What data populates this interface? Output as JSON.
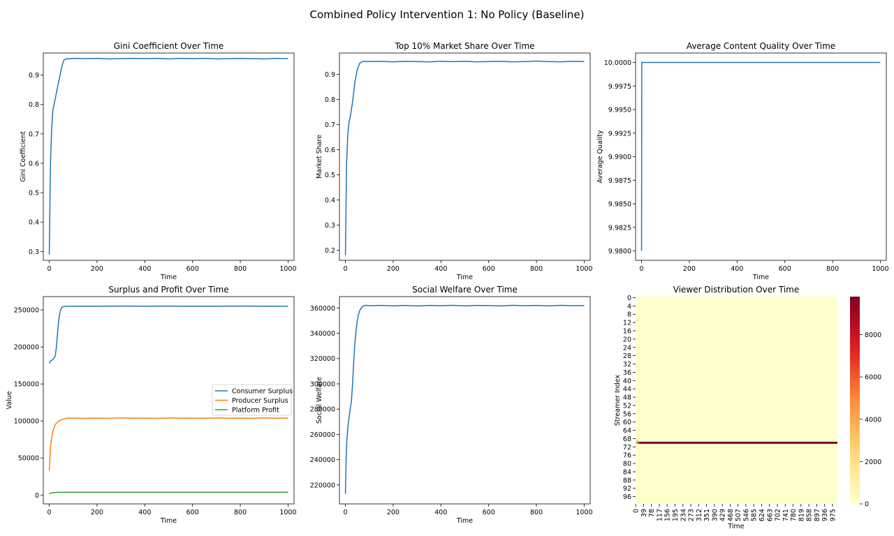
{
  "figure": {
    "suptitle": "Combined Policy Intervention 1: No Policy (Baseline)"
  },
  "chart_data": [
    {
      "type": "line",
      "title": "Gini Coefficient Over Time",
      "xlabel": "Time",
      "ylabel": "Gini Coefficient",
      "xlim": [
        -25,
        1025
      ],
      "ylim": [
        0.27,
        0.975
      ],
      "xticks": [
        0,
        200,
        400,
        600,
        800,
        1000
      ],
      "yticks": [
        0.3,
        0.4,
        0.5,
        0.6,
        0.7,
        0.8,
        0.9
      ],
      "yticklabels": [
        "0.3",
        "0.4",
        "0.5",
        "0.6",
        "0.7",
        "0.8",
        "0.9"
      ],
      "grid": false,
      "series": [
        {
          "color": "#1f77b4",
          "x": [
            0,
            5,
            10,
            15,
            20,
            25,
            30,
            35,
            40,
            50,
            60,
            70,
            80,
            100,
            150,
            200,
            250,
            300,
            350,
            400,
            450,
            500,
            550,
            600,
            650,
            700,
            750,
            800,
            850,
            900,
            950,
            1000
          ],
          "y": [
            0.29,
            0.6,
            0.72,
            0.78,
            0.8,
            0.82,
            0.84,
            0.86,
            0.88,
            0.92,
            0.95,
            0.955,
            0.955,
            0.957,
            0.956,
            0.957,
            0.955,
            0.956,
            0.957,
            0.956,
            0.957,
            0.955,
            0.957,
            0.956,
            0.957,
            0.955,
            0.956,
            0.957,
            0.956,
            0.955,
            0.957,
            0.956
          ]
        }
      ]
    },
    {
      "type": "line",
      "title": "Top 10% Market Share Over Time",
      "xlabel": "Time",
      "ylabel": "Market Share",
      "xlim": [
        -25,
        1025
      ],
      "ylim": [
        0.16,
        0.985
      ],
      "xticks": [
        0,
        200,
        400,
        600,
        800,
        1000
      ],
      "yticks": [
        0.2,
        0.3,
        0.4,
        0.5,
        0.6,
        0.7,
        0.8,
        0.9
      ],
      "yticklabels": [
        "0.2",
        "0.3",
        "0.4",
        "0.5",
        "0.6",
        "0.7",
        "0.8",
        "0.9"
      ],
      "grid": false,
      "series": [
        {
          "color": "#1f77b4",
          "x": [
            0,
            5,
            10,
            15,
            20,
            25,
            30,
            35,
            40,
            50,
            60,
            70,
            80,
            100,
            150,
            200,
            250,
            300,
            350,
            400,
            450,
            500,
            550,
            600,
            650,
            700,
            750,
            800,
            850,
            900,
            950,
            1000
          ],
          "y": [
            0.18,
            0.55,
            0.66,
            0.71,
            0.73,
            0.76,
            0.79,
            0.83,
            0.87,
            0.92,
            0.945,
            0.95,
            0.952,
            0.951,
            0.952,
            0.95,
            0.952,
            0.951,
            0.95,
            0.952,
            0.951,
            0.952,
            0.95,
            0.951,
            0.952,
            0.95,
            0.951,
            0.953,
            0.951,
            0.95,
            0.952,
            0.951
          ]
        }
      ]
    },
    {
      "type": "line",
      "title": "Average Content Quality Over Time",
      "xlabel": "Time",
      "ylabel": "Average Quality",
      "xlim": [
        -25,
        1025
      ],
      "ylim": [
        9.979,
        10.001
      ],
      "xticks": [
        0,
        200,
        400,
        600,
        800,
        1000
      ],
      "yticks": [
        9.98,
        9.9825,
        9.985,
        9.9875,
        9.99,
        9.9925,
        9.995,
        9.9975,
        10.0
      ],
      "yticklabels": [
        "9.9800",
        "9.9825",
        "9.9850",
        "9.9875",
        "9.9900",
        "9.9925",
        "9.9950",
        "9.9975",
        "10.0000"
      ],
      "grid": false,
      "series": [
        {
          "color": "#1f77b4",
          "x": [
            0,
            1,
            1000
          ],
          "y": [
            9.98,
            10.0,
            10.0
          ]
        }
      ]
    },
    {
      "type": "line",
      "title": "Surplus and Profit Over Time",
      "xlabel": "Time",
      "ylabel": "Value",
      "xlim": [
        -25,
        1025
      ],
      "ylim": [
        -12000,
        268000
      ],
      "xticks": [
        0,
        200,
        400,
        600,
        800,
        1000
      ],
      "yticks": [
        0,
        50000,
        100000,
        150000,
        200000,
        250000
      ],
      "yticklabels": [
        "0",
        "50000",
        "100000",
        "150000",
        "200000",
        "250000"
      ],
      "grid": false,
      "legend": "center-right",
      "series": [
        {
          "name": "Consumer Surplus",
          "color": "#1f77b4",
          "x": [
            0,
            5,
            10,
            15,
            20,
            25,
            30,
            35,
            40,
            45,
            50,
            55,
            60,
            70,
            80,
            100,
            200,
            300,
            400,
            500,
            600,
            700,
            800,
            900,
            1000
          ],
          "y": [
            178000,
            181000,
            182000,
            183000,
            185000,
            188000,
            200000,
            220000,
            237000,
            247000,
            252000,
            254000,
            254500,
            255000,
            255000,
            255000,
            255000,
            255200,
            255000,
            255100,
            255000,
            255000,
            255100,
            255000,
            255000
          ]
        },
        {
          "name": "Producer Surplus",
          "color": "#ff7f0e",
          "x": [
            0,
            5,
            10,
            15,
            20,
            25,
            30,
            40,
            50,
            60,
            70,
            80,
            100,
            150,
            200,
            250,
            300,
            350,
            400,
            450,
            500,
            550,
            600,
            650,
            700,
            750,
            800,
            850,
            900,
            950,
            1000
          ],
          "y": [
            33000,
            65000,
            78000,
            86000,
            91000,
            95000,
            97000,
            100000,
            101500,
            102500,
            103500,
            104000,
            104000,
            103500,
            104000,
            103600,
            104200,
            103700,
            104000,
            103600,
            104100,
            103800,
            104000,
            103700,
            104100,
            103800,
            104000,
            103600,
            104200,
            103800,
            104000
          ]
        },
        {
          "name": "Platform Profit",
          "color": "#2ca02c",
          "x": [
            0,
            10,
            20,
            30,
            50,
            100,
            200,
            400,
            600,
            800,
            1000
          ],
          "y": [
            2000,
            2800,
            3200,
            3500,
            3700,
            3800,
            3800,
            3800,
            3800,
            3800,
            3800
          ]
        }
      ]
    },
    {
      "type": "line",
      "title": "Social Welfare Over Time",
      "xlabel": "Time",
      "ylabel": "Social Welfare",
      "xlim": [
        -25,
        1025
      ],
      "ylim": [
        205000,
        369000
      ],
      "xticks": [
        0,
        200,
        400,
        600,
        800,
        1000
      ],
      "yticks": [
        220000,
        240000,
        260000,
        280000,
        300000,
        320000,
        340000,
        360000
      ],
      "yticklabels": [
        "220000",
        "240000",
        "260000",
        "280000",
        "300000",
        "320000",
        "340000",
        "360000"
      ],
      "grid": false,
      "series": [
        {
          "color": "#1f77b4",
          "x": [
            0,
            3,
            6,
            10,
            15,
            20,
            25,
            30,
            35,
            40,
            45,
            50,
            55,
            60,
            70,
            80,
            90,
            100,
            150,
            200,
            250,
            300,
            350,
            400,
            450,
            500,
            550,
            600,
            650,
            700,
            750,
            800,
            850,
            900,
            950,
            1000
          ],
          "y": [
            213000,
            240000,
            255000,
            265000,
            273000,
            280000,
            286000,
            300000,
            318000,
            333000,
            343000,
            350000,
            355000,
            358000,
            361000,
            362000,
            362000,
            361800,
            362000,
            361700,
            362000,
            361600,
            362000,
            361800,
            362100,
            361700,
            362000,
            361900,
            361600,
            362100,
            361800,
            362000,
            361700,
            362100,
            361800,
            361900
          ]
        }
      ]
    },
    {
      "type": "heatmap",
      "title": "Viewer Distribution Over Time",
      "xlabel": "Time",
      "ylabel": "Streamer Index",
      "rows": 100,
      "cols": 1000,
      "xticks": [
        0,
        39,
        78,
        117,
        156,
        195,
        234,
        273,
        312,
        351,
        390,
        429,
        468,
        507,
        546,
        585,
        624,
        663,
        702,
        741,
        780,
        819,
        858,
        897,
        936,
        975
      ],
      "yticks": [
        0,
        4,
        8,
        12,
        16,
        20,
        24,
        28,
        32,
        36,
        40,
        44,
        48,
        52,
        56,
        60,
        64,
        68,
        72,
        76,
        80,
        84,
        88,
        92,
        96
      ],
      "colorbar_ticks": [
        0,
        2000,
        4000,
        6000,
        8000
      ],
      "colorbar_max": 9800,
      "colormap": "YlOrRd",
      "dominant_row": 70,
      "dominant_value": 9800,
      "dominant_from_time": 20,
      "background_value": 0
    }
  ]
}
